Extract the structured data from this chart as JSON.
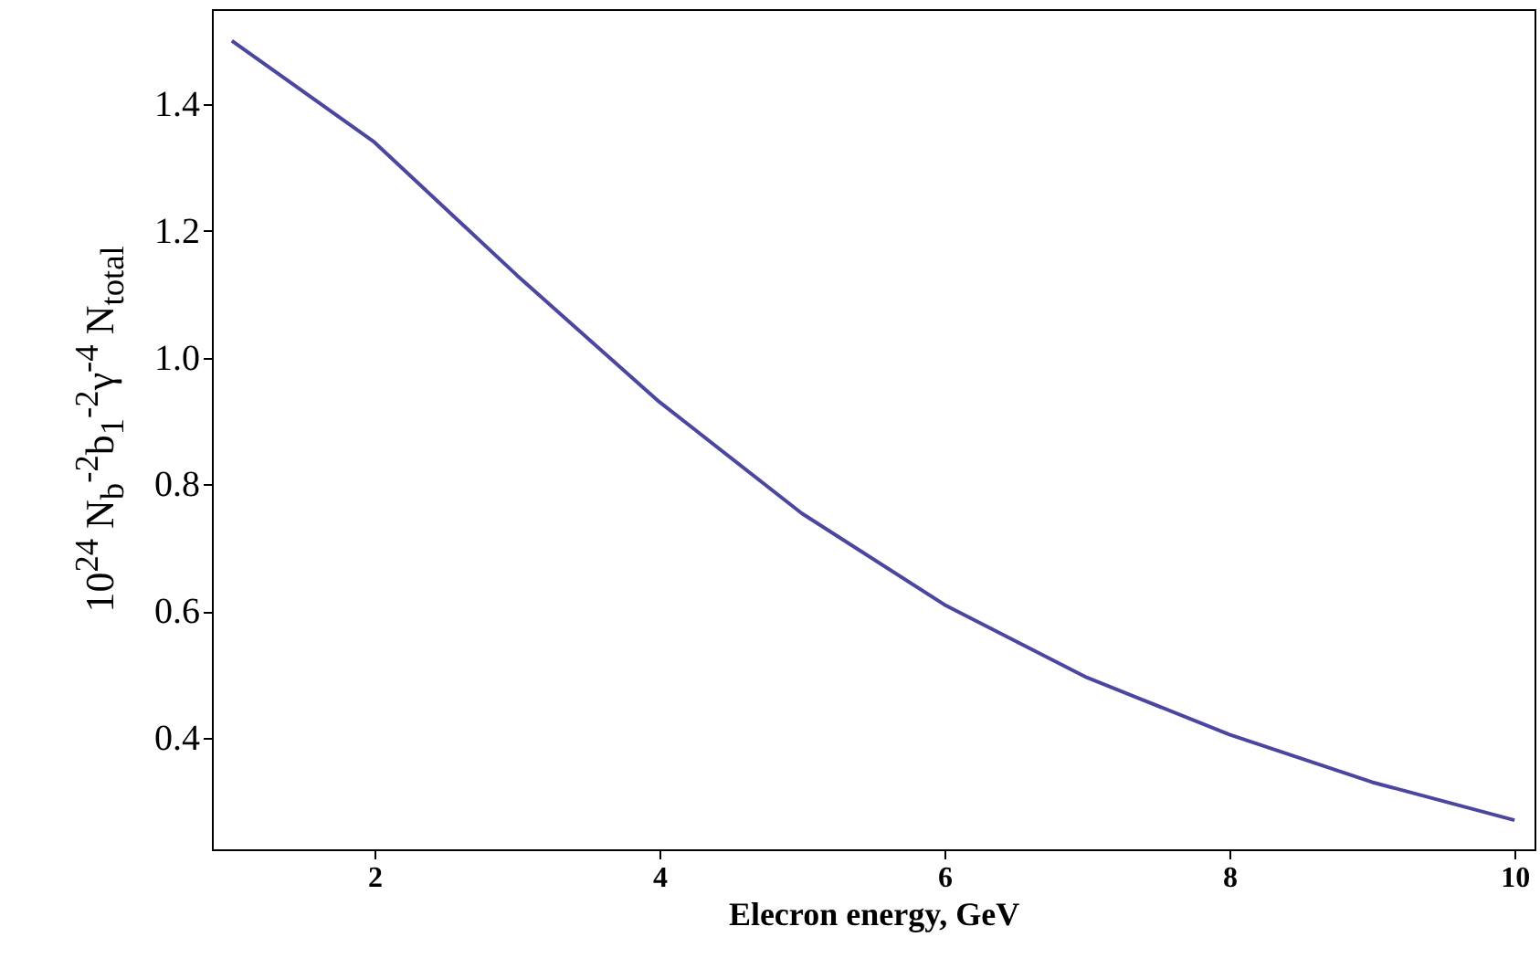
{
  "chart_data": {
    "type": "line",
    "xlabel": "Elecron energy, GeV",
    "ylabel": "10$^{24}$ N$_{b}$$^{-2}$b$_{1}$$^{-2}$γ$^{-4}$ N$_{total}$",
    "x": [
      1,
      2,
      3,
      4,
      5,
      6,
      7,
      8,
      9,
      10
    ],
    "series": [
      {
        "color": "#4b46a0",
        "values": [
          1.5,
          1.34,
          1.13,
          0.93,
          0.754,
          0.61,
          0.495,
          0.405,
          0.33,
          0.27
        ]
      }
    ],
    "xlim": [
      0.86,
      10.14
    ],
    "ylim": [
      0.224,
      1.55
    ],
    "xticks": [
      2,
      4,
      6,
      8,
      10
    ],
    "yticks": [
      {
        "value": 0.4,
        "label": "0.4"
      },
      {
        "value": 0.6,
        "label": "0.6"
      },
      {
        "value": 0.8,
        "label": "0.8"
      },
      {
        "value": 1.0,
        "label": "1.0"
      },
      {
        "value": 1.2,
        "label": "1.2"
      },
      {
        "value": 1.4,
        "label": "1.4"
      }
    ],
    "grid": false,
    "marker": "none",
    "line_style": "solid"
  }
}
